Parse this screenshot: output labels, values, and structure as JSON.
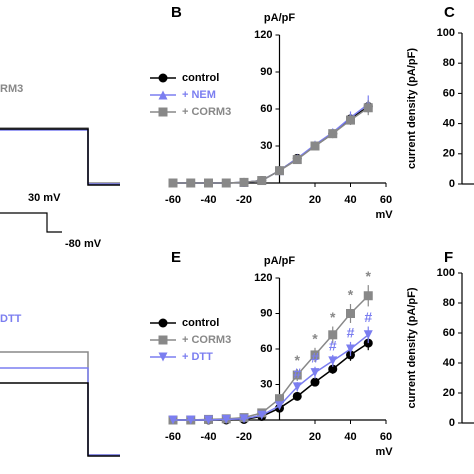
{
  "chart_data": [
    {
      "type": "line",
      "panel": "B",
      "y_unit": "pA/pF",
      "x_unit": "mV",
      "x": [
        -60,
        -50,
        -40,
        -30,
        -20,
        -10,
        0,
        10,
        20,
        30,
        40,
        50
      ],
      "xlim": [
        -60,
        60
      ],
      "ylim": [
        0,
        120
      ],
      "xticks": [
        -60,
        -40,
        -20,
        20,
        40,
        60
      ],
      "yticks": [
        30,
        60,
        90,
        120
      ],
      "series": [
        {
          "name": "control",
          "color": "#000000",
          "marker": "circle",
          "values": [
            0,
            0,
            0,
            0,
            0.5,
            2,
            10,
            20,
            30,
            40,
            52,
            62
          ],
          "errors": [
            0,
            0,
            0,
            0,
            0,
            1,
            1,
            2,
            2,
            3,
            4,
            5
          ]
        },
        {
          "name": "+ NEM",
          "color": "#7b7ef0",
          "marker": "triangle-up",
          "values": [
            0,
            0,
            0,
            0,
            0.5,
            2,
            10,
            20,
            31,
            41,
            53,
            64
          ],
          "errors": [
            0,
            0,
            0,
            0,
            0,
            1,
            1,
            2,
            2,
            3,
            5,
            7
          ]
        },
        {
          "name": "+ CORM3",
          "color": "#888888",
          "marker": "square",
          "values": [
            0,
            0,
            0,
            0,
            0.5,
            2,
            10,
            19,
            30,
            40,
            51,
            61
          ],
          "errors": [
            0,
            0,
            0,
            0,
            0,
            1,
            1,
            2,
            2,
            3,
            4,
            6
          ]
        }
      ]
    },
    {
      "type": "bar",
      "panel": "C",
      "ylabel": "current density (pA/pF)",
      "ylim": [
        0,
        100
      ],
      "yticks": [
        0,
        20,
        40,
        60,
        80,
        100
      ]
    },
    {
      "type": "line",
      "panel": "E",
      "y_unit": "pA/pF",
      "x_unit": "mV",
      "x": [
        -60,
        -50,
        -40,
        -30,
        -20,
        -10,
        0,
        10,
        20,
        30,
        40,
        50
      ],
      "xlim": [
        -60,
        60
      ],
      "ylim": [
        0,
        120
      ],
      "xticks": [
        -60,
        -40,
        -20,
        20,
        40,
        60
      ],
      "yticks": [
        30,
        60,
        90,
        120
      ],
      "series": [
        {
          "name": "control",
          "color": "#000000",
          "marker": "circle",
          "values": [
            0,
            0,
            0,
            0,
            0.5,
            3,
            10,
            20,
            32,
            43,
            55,
            65
          ],
          "errors": [
            0,
            0,
            0,
            0,
            0,
            1,
            2,
            3,
            3,
            4,
            5,
            6
          ],
          "significance": [
            null,
            null,
            null,
            null,
            null,
            null,
            null,
            null,
            null,
            null,
            null,
            null
          ]
        },
        {
          "name": "+ CORM3",
          "color": "#888888",
          "marker": "square",
          "values": [
            0,
            0,
            0.5,
            1,
            2,
            6,
            18,
            38,
            55,
            72,
            90,
            105
          ],
          "errors": [
            0,
            0,
            0,
            0,
            1,
            2,
            4,
            5,
            6,
            7,
            8,
            9
          ],
          "significance": [
            null,
            null,
            null,
            null,
            null,
            null,
            null,
            "*",
            "*",
            "*",
            "*",
            "*"
          ]
        },
        {
          "name": "+ DTT",
          "color": "#7b7ef0",
          "marker": "triangle-down",
          "values": [
            0,
            0,
            0,
            0.5,
            1,
            4,
            12,
            28,
            40,
            50,
            60,
            72
          ],
          "errors": [
            0,
            0,
            0,
            0,
            1,
            1,
            3,
            4,
            5,
            5,
            6,
            7
          ],
          "significance": [
            null,
            null,
            null,
            null,
            null,
            null,
            null,
            "#",
            "#",
            "#",
            "#",
            "#"
          ]
        }
      ]
    },
    {
      "type": "bar",
      "panel": "F",
      "ylabel": "current density (pA/pF)",
      "ylim": [
        0,
        100
      ],
      "yticks": [
        0,
        20,
        40,
        60,
        80,
        100
      ]
    }
  ],
  "traces": {
    "top_label": "RM3",
    "step_high": "30 mV",
    "step_low": "-80 mV",
    "bottom_label": "DTT"
  }
}
